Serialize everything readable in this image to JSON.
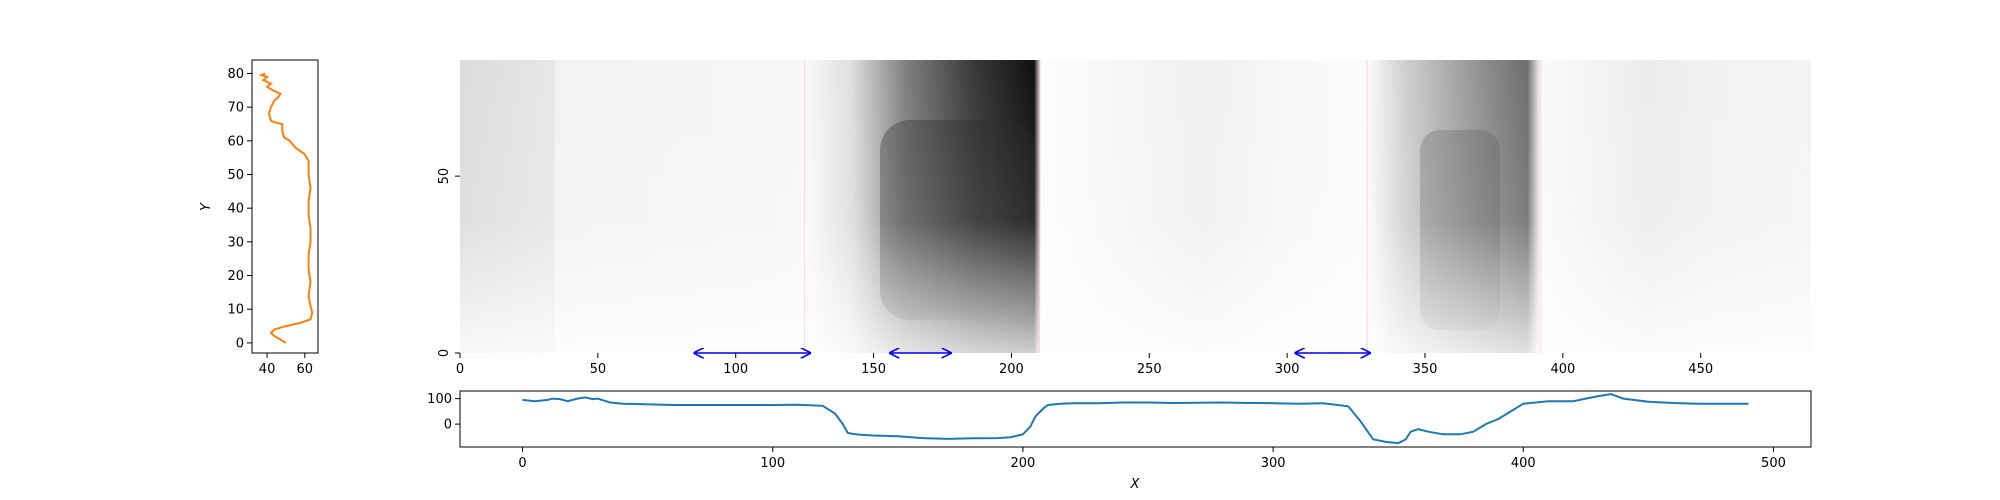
{
  "colors": {
    "left_line": "#ff7f0e",
    "bottom_line": "#1f77b4",
    "arrow": "#0000ee",
    "faint_boundary": "#ff6b6b"
  },
  "chart_data": [
    {
      "name": "vertical-profile",
      "type": "line",
      "xlabel": "",
      "ylabel": "Y",
      "xlim": [
        32,
        67
      ],
      "ylim": [
        -3,
        84
      ],
      "xticks": [
        "40",
        "60"
      ],
      "yticks": [
        "0",
        "10",
        "20",
        "30",
        "40",
        "50",
        "60",
        "70",
        "80"
      ],
      "series": [
        {
          "x": [
            50,
            47,
            44,
            42,
            44,
            50,
            58,
            63,
            64,
            63,
            62,
            63,
            62,
            62,
            63,
            63,
            62,
            62,
            63,
            62,
            62,
            60,
            55,
            52,
            49,
            48,
            48,
            44,
            42,
            41,
            42,
            44,
            46,
            47,
            43,
            40,
            42,
            38,
            40,
            37,
            39
          ],
          "y": [
            0,
            1,
            2,
            3,
            4,
            5,
            6,
            7,
            9,
            11,
            14,
            18,
            22,
            26,
            30,
            34,
            38,
            42,
            46,
            50,
            54,
            56,
            58,
            60,
            61,
            63,
            65,
            65.5,
            66,
            68,
            70,
            72,
            73,
            74,
            75,
            76,
            77,
            78,
            79,
            79.5,
            80
          ]
        }
      ]
    },
    {
      "name": "heatmap",
      "type": "heatmap",
      "xlim": [
        0,
        490
      ],
      "ylim": [
        0,
        80
      ],
      "xticks": [
        "0",
        "50",
        "100",
        "150",
        "200",
        "250",
        "300",
        "350",
        "400",
        "450"
      ],
      "yticks": [
        "0",
        "50"
      ],
      "colormap": "gray_r",
      "arrows": [
        {
          "from": 85,
          "to": 127
        },
        {
          "from": 156,
          "to": 178
        },
        {
          "from": 303,
          "to": 330
        }
      ],
      "boundaries": [
        125,
        210,
        329,
        392
      ]
    },
    {
      "name": "horizontal-profile",
      "type": "line",
      "xlabel": "X",
      "ylabel": "",
      "xlim": [
        -25,
        515
      ],
      "ylim": [
        -90,
        130
      ],
      "xticks": [
        "0",
        "100",
        "200",
        "300",
        "400",
        "500"
      ],
      "yticks": [
        "0",
        "100"
      ],
      "series": [
        {
          "x": [
            0,
            5,
            10,
            12,
            15,
            18,
            20,
            22,
            25,
            28,
            30,
            35,
            40,
            60,
            80,
            100,
            110,
            120,
            125,
            128,
            130,
            133,
            135,
            140,
            150,
            160,
            170,
            180,
            190,
            195,
            200,
            203,
            205,
            208,
            210,
            215,
            220,
            230,
            240,
            250,
            260,
            270,
            280,
            290,
            300,
            310,
            320,
            330,
            335,
            340,
            345,
            350,
            353,
            355,
            358,
            362,
            368,
            375,
            380,
            385,
            390,
            395,
            400,
            410,
            420,
            425,
            430,
            435,
            440,
            450,
            460,
            470,
            480,
            490
          ],
          "y": [
            95,
            90,
            95,
            100,
            98,
            90,
            95,
            100,
            105,
            98,
            100,
            85,
            80,
            75,
            75,
            75,
            76,
            72,
            40,
            0,
            -35,
            -40,
            -42,
            -45,
            -48,
            -55,
            -58,
            -56,
            -55,
            -52,
            -40,
            -10,
            30,
            60,
            75,
            80,
            82,
            82,
            85,
            85,
            83,
            84,
            85,
            83,
            82,
            80,
            82,
            70,
            10,
            -60,
            -70,
            -75,
            -60,
            -30,
            -20,
            -30,
            -40,
            -40,
            -30,
            0,
            20,
            50,
            80,
            90,
            90,
            100,
            110,
            118,
            100,
            88,
            83,
            80,
            80,
            80
          ]
        }
      ]
    }
  ]
}
